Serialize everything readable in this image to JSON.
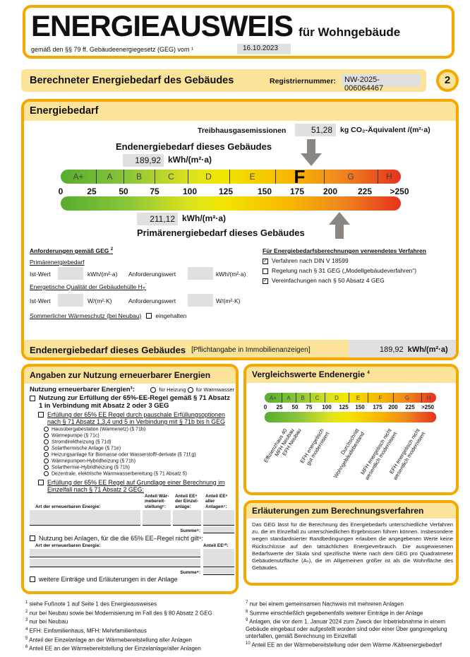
{
  "header": {
    "title": "ENERGIEAUSWEIS",
    "subtitle": "für Wohngebäude",
    "law_text": "gemäß den §§ 79 ff. Gebäudeenergiegesetz (GEG) vom ¹",
    "law_date": "16.10.2023"
  },
  "section": {
    "title": "Berechneter Energiebedarf des Gebäudes",
    "reg_label": "Registriernummer:",
    "reg_number": "NW-2025-006064467",
    "page_number": "2"
  },
  "energiebedarf": {
    "title": "Energiebedarf",
    "ghg_label": "Treibhausgasemissionen",
    "ghg_value": "51,28",
    "ghg_unit": "kg CO₂-Äquivalent /(m²·a)",
    "end_label": "Endenergiebedarf dieses Gebäudes",
    "end_value": "189,92",
    "end_value_num": 189.92,
    "unit": "kWh/(m²·a)",
    "primary_label": "Primärenergiebedarf dieses Gebäudes",
    "primary_value": "211,12",
    "primary_value_num": 211.12,
    "classes": [
      "A+",
      "A",
      "B",
      "C",
      "D",
      "E",
      "F",
      "G",
      "H"
    ],
    "active_class": "F",
    "ticks": [
      "0",
      "25",
      "50",
      "75",
      "100",
      "125",
      "150",
      "175",
      "200",
      "225",
      ">250"
    ],
    "colors": {
      "border": "#f5a800",
      "header": "#fbe39a",
      "arrow": "#8c8682",
      "green": "#56ad2f",
      "yellow": "#f2e600",
      "red": "#e5321e"
    }
  },
  "requirements": {
    "title": "Anforderungen gemäß GEG",
    "title_sup": "2",
    "primary_heading": "Primärenergiebedarf",
    "ist": "Ist-Wert",
    "req": "Anforderungswert",
    "unit1": "kWh/(m²·a)",
    "envelope_heading": "Energetische Qualität der Gebäudehülle H",
    "envelope_sub": "T",
    "envelope_sup": "'",
    "unit2": "W/(m²·K)",
    "summer": "Sommerlicher Wärmeschutz (bei Neubau)",
    "summer_opt": "eingehalten"
  },
  "procedures": {
    "title": "Für Energiebedarfsberechnungen verwendetes Verfahren",
    "items": [
      {
        "label": "Verfahren nach DIN V 18599",
        "checked": true
      },
      {
        "label": "Regelung nach § 31 GEG („Modellgebäudeverfahren“)",
        "checked": false
      },
      {
        "label": "Vereinfachungen nach § 50 Absatz 4 GEG",
        "checked": true
      }
    ]
  },
  "final_bar": {
    "label": "Endenergiebedarf dieses Gebäudes",
    "note": "[Pflichtangabe in Immobilienanzeigen]",
    "value": "189,92",
    "unit": "kWh/(m²·a)"
  },
  "renewable": {
    "title": "Angaben zur Nutzung erneuerbarer Energien",
    "usage_label": "Nutzung erneuerbarer Energien³:",
    "opt_heat": "für Heizung",
    "opt_water": "für Warmwasser",
    "rule_65": "Nutzung zur Erfüllung der 65%-EE-Regel gemäß § 71 Absatz 1 in Verbindung mit Absatz 2 oder 3 GEG",
    "pauschal": "Erfüllung der 65% EE Regel durch pauschale Erfüllungsoptionen nach § 71 Absatz 1,3,4 und 5 in Verbindung mit § 71b bis h GEG",
    "options": [
      "Hausübergabestation (Wärmenetz) (§ 71b)",
      "Wärmepumpe (§ 71c)",
      "Stromdirektheizung (§ 71d)",
      "Solarthermische Anlage (§ 71e)",
      "Heizungsanlage für Biomasse oder Wasserstoff/-derivate (§ 71f,g)",
      "Wärmepumpen-Hybridheizung (§ 71h)",
      "Solarthermie-Hybridheizung (§ 71h)",
      "Dezentrale, elektrische Warmwasserbereitung (§ 71 Absatz 5)"
    ],
    "einzelfall": "Erfüllung der 65% EE Regel auf Grundlage einer Berechnung im Einzelfall nach § 71 Absatz 2 GEG:",
    "col_type": "Art der erneuerbaren Energie:",
    "col_share": "Anteil Wär-mebereit-stellung⁵:",
    "col_ee_single": "Anteil EE⁶ der Einzel-anlage:",
    "col_ee_all": "Anteil EE⁶ aller Anlagen⁷:",
    "sum": "Summe⁸:",
    "not_applicable": "Nutzung bei Anlagen, für die die 65% EE–Regel nicht gilt⁹:",
    "col_type2": "Art der erneuerbaren Energie:",
    "col_ee10": "Anteil EE¹⁰:",
    "more": "weitere Einträge und Erläuterungen in der Anlage"
  },
  "comparison": {
    "title": "Vergleichswerte Endenergie",
    "title_sup": "4",
    "labels": [
      "Effizienzhaus 40",
      "MFH Neubau",
      "EFH Neubau",
      "EFH energetisch\ngut modernisiert",
      "Durchschnitt\nWohngebäudebestand",
      "MFH energetisch nicht\nwesentlich modernisiert",
      "EFH energetisch nicht\nwesentlich modernisiert"
    ]
  },
  "explanation": {
    "title": "Erläuterungen zum Berechnungsverfahren",
    "text": "Das GEG lässt für die Berechnung des Energiebedarfs unterschiedliche Verfahren zu, die im Einzelfall zu unterschiedlichen Ergebnissen führen können. Insbesondere wegen standardisierter Randbedingungen erlauben die angegebenen Werte keine Rückschlüsse auf den tatsächlichen Energieverbrauch. Die ausgewiesenen Bedarfswerte der Skala sind spezifische Werte nach dem GEG pro Quadratmeter Gebäudenutzfläche (Aₙ), die im Allgemeinen größer ist als die Wohnfläche des Gebäudes."
  },
  "footnotes": {
    "left": [
      {
        "n": "1",
        "t": "siehe Fußnote 1 auf Seite 1 des Energieausweises"
      },
      {
        "n": "2",
        "t": "nur bei Neubau sowie bei Modernisierung im Fall des § 80 Absatz 2 GEG"
      },
      {
        "n": "3",
        "t": "nur bei Neubau"
      },
      {
        "n": "4",
        "t": "EFH: Einfamilienhaus, MFH: Mehrfamilienhaus"
      },
      {
        "n": "5",
        "t": "Anteil der Einzelanlage an der Wärmebereitstellung aller Anlagen"
      },
      {
        "n": "6",
        "t": "Anteil EE an der Wärmebereitstellung der Einzelanlage/aller Anlagen"
      }
    ],
    "right": [
      {
        "n": "7",
        "t": "nur bei einem gemeinsamen Nachweis mit mehreren Anlagen"
      },
      {
        "n": "8",
        "t": "Summe einschließlich gegebenenfalls weiterer Einträge in der Anlage"
      },
      {
        "n": "9",
        "t": "Anlagen, die vor dem 1. Januar 2024 zum Zweck der Inbetriebnahme in einem Gebäude eingebaut oder aufgestellt worden sind oder einer Über gangsregelung unterfallen, gemäß Berechnung im Einzelfall"
      },
      {
        "n": "10",
        "t": "Anteil EE an der Wärmebereitstellung oder dem Wärme /Kälteenergiebedarf"
      }
    ]
  }
}
